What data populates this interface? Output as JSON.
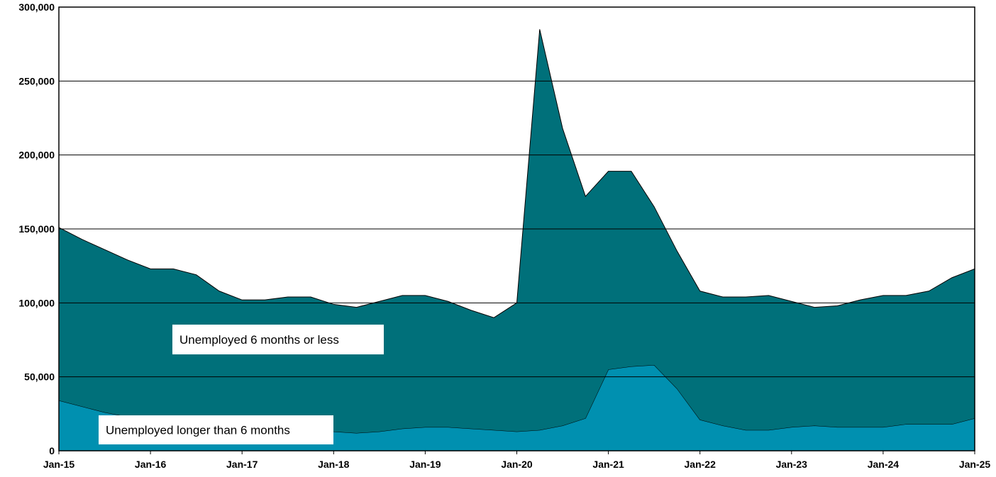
{
  "chart_data": {
    "type": "stacked-area",
    "categories": [
      "Jan-15",
      null,
      null,
      null,
      "Jan-16",
      null,
      null,
      null,
      "Jan-17",
      null,
      null,
      null,
      "Jan-18",
      null,
      null,
      null,
      "Jan-19",
      null,
      null,
      null,
      "Jan-20",
      null,
      null,
      null,
      "Jan-21",
      null,
      null,
      null,
      "Jan-22",
      null,
      null,
      null,
      "Jan-23",
      null,
      null,
      null,
      "Jan-24",
      null,
      null,
      null,
      "Jan-25"
    ],
    "series": [
      {
        "name": "Unemployed longer than 6 months",
        "color": "#0090b0",
        "values": [
          34000,
          30000,
          26000,
          23000,
          21000,
          20000,
          19000,
          18000,
          18000,
          17000,
          17000,
          15000,
          13000,
          12000,
          13000,
          15000,
          16000,
          16000,
          15000,
          14000,
          13000,
          14000,
          17000,
          22000,
          55000,
          57000,
          58000,
          42000,
          21000,
          17000,
          14000,
          14000,
          16000,
          17000,
          16000,
          16000,
          16000,
          18000,
          18000,
          18000,
          22000
        ]
      },
      {
        "name": "Unemployed 6 months or less",
        "color": "#00707a",
        "values": [
          117000,
          113000,
          110000,
          106000,
          102000,
          103000,
          100000,
          90000,
          84000,
          85000,
          87000,
          89000,
          86000,
          85000,
          88000,
          90000,
          89000,
          85000,
          80000,
          76000,
          87000,
          271000,
          201000,
          150000,
          134000,
          132000,
          107000,
          93000,
          87000,
          87000,
          90000,
          91000,
          85000,
          80000,
          82000,
          86000,
          89000,
          87000,
          90000,
          99000,
          101000
        ]
      }
    ],
    "ylim": [
      0,
      300000
    ],
    "yticks": [
      0,
      {
        "value": 50000,
        "label": "50,000"
      },
      {
        "value": 100000,
        "label": "100,000"
      },
      {
        "value": 150000,
        "label": "150,000"
      },
      {
        "value": 200000,
        "label": "200,000"
      },
      {
        "value": 250000,
        "label": "250,000"
      },
      {
        "value": 300000,
        "label": "300,000"
      }
    ],
    "grid": true
  }
}
